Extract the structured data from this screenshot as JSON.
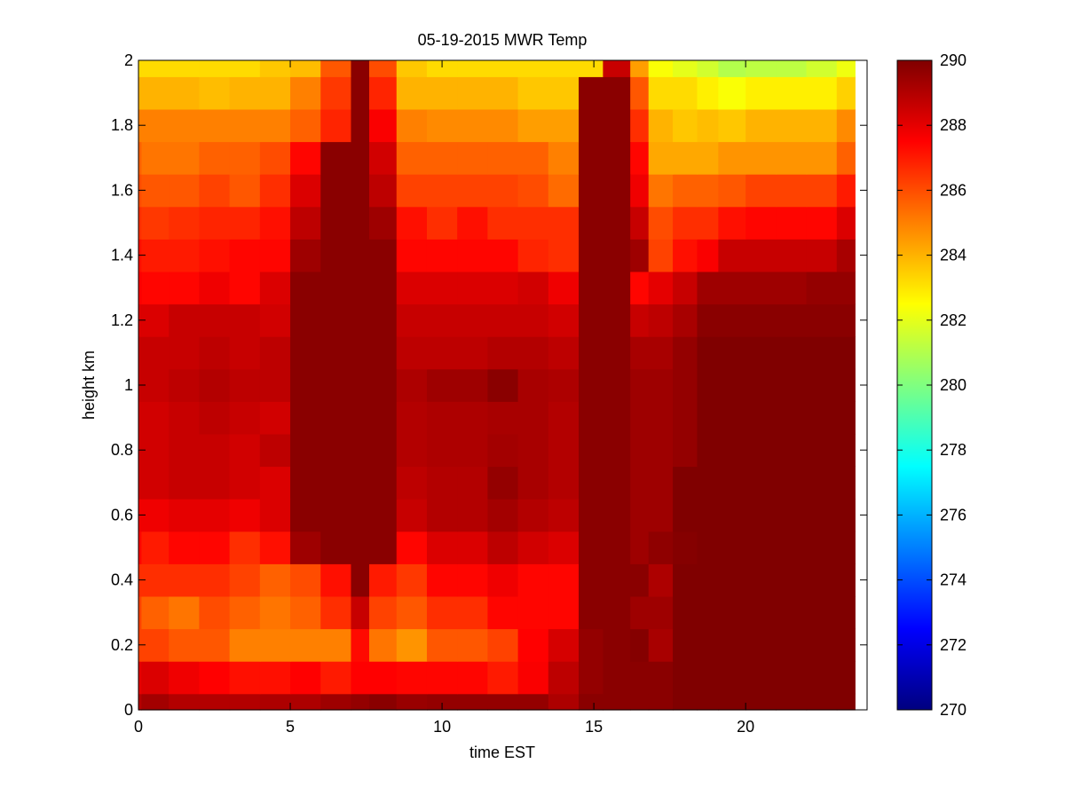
{
  "chart_data": {
    "type": "heatmap",
    "title": "05-19-2015 MWR Temp",
    "xlabel": "time EST",
    "ylabel": "height km",
    "xlim": [
      0,
      24
    ],
    "ylim": [
      0,
      2
    ],
    "x_ticks": [
      0,
      5,
      10,
      15,
      20
    ],
    "y_ticks": [
      0,
      0.2,
      0.4,
      0.6,
      0.8,
      1,
      1.2,
      1.4,
      1.6,
      1.8,
      2
    ],
    "x_edges": [
      0,
      0.1,
      1,
      2,
      3,
      4,
      5,
      6,
      7,
      7.6,
      8.5,
      9.5,
      10.5,
      11.5,
      12.5,
      13.5,
      14.5,
      15.3,
      16.2,
      16.8,
      17.6,
      18.4,
      19.1,
      20.0,
      21.0,
      22.0,
      23.0,
      23.6
    ],
    "y_edges": [
      0,
      0.05,
      0.15,
      0.25,
      0.35,
      0.45,
      0.55,
      0.65,
      0.75,
      0.85,
      0.95,
      1.05,
      1.15,
      1.25,
      1.35,
      1.45,
      1.55,
      1.65,
      1.75,
      1.85,
      1.95,
      2.0
    ],
    "z_unit": "K",
    "z_values": [
      [
        289.0,
        289.3,
        289.0,
        289.0,
        289.0,
        289.1,
        289.1,
        289.4,
        289.6,
        289.8,
        289.5,
        289.6,
        289.6,
        289.6,
        289.6,
        289.1,
        289.8,
        289.8,
        289.8,
        289.8,
        290.0,
        290.0,
        290.0,
        290.0,
        290.0,
        290.0,
        290.0
      ],
      [
        288.0,
        288.2,
        287.8,
        287.5,
        287.2,
        287.2,
        287.5,
        287.0,
        287.5,
        287.5,
        287.4,
        287.4,
        287.4,
        287.0,
        287.6,
        288.8,
        289.6,
        289.8,
        289.8,
        289.8,
        290.0,
        290.0,
        290.0,
        290.0,
        290.0,
        290.0,
        290.0
      ],
      [
        286.2,
        286.2,
        285.8,
        285.8,
        285.0,
        285.0,
        285.0,
        285.0,
        287.3,
        285.2,
        284.6,
        285.8,
        285.8,
        286.2,
        287.5,
        288.3,
        289.6,
        289.8,
        289.9,
        289.2,
        290.0,
        290.0,
        290.0,
        290.0,
        290.0,
        290.0,
        290.0
      ],
      [
        286.2,
        285.6,
        285.2,
        286.0,
        285.6,
        285.2,
        285.6,
        286.6,
        288.6,
        286.2,
        285.8,
        286.6,
        286.6,
        287.4,
        287.4,
        287.4,
        289.8,
        289.8,
        289.4,
        289.4,
        290.0,
        290.0,
        290.0,
        290.0,
        290.0,
        290.0,
        290.0
      ],
      [
        286.6,
        286.6,
        286.6,
        286.6,
        286.2,
        285.6,
        286.0,
        287.2,
        289.8,
        287.0,
        286.4,
        287.4,
        287.4,
        287.8,
        287.4,
        287.4,
        289.8,
        289.8,
        289.8,
        289.1,
        290.0,
        290.0,
        290.0,
        290.0,
        290.0,
        290.0,
        290.0
      ],
      [
        287.4,
        287.0,
        287.4,
        287.4,
        286.6,
        287.2,
        289.4,
        289.8,
        289.8,
        289.8,
        287.4,
        288.2,
        288.2,
        288.8,
        288.4,
        288.2,
        289.8,
        289.8,
        289.4,
        289.7,
        289.9,
        290.0,
        290.0,
        290.0,
        290.0,
        290.0,
        290.0
      ],
      [
        287.8,
        287.8,
        288.0,
        288.0,
        287.8,
        288.2,
        289.8,
        289.8,
        289.8,
        289.8,
        288.6,
        289.0,
        289.0,
        289.3,
        289.0,
        288.8,
        289.8,
        289.8,
        289.4,
        289.4,
        290.0,
        290.0,
        290.0,
        290.0,
        290.0,
        290.0,
        290.0
      ],
      [
        288.4,
        288.4,
        288.6,
        288.6,
        288.4,
        288.2,
        289.8,
        289.8,
        289.8,
        289.8,
        288.8,
        289.0,
        289.0,
        289.6,
        289.2,
        289.0,
        289.8,
        289.8,
        289.4,
        289.4,
        290.0,
        290.0,
        290.0,
        290.0,
        290.0,
        290.0,
        290.0
      ],
      [
        288.4,
        288.4,
        288.6,
        288.6,
        288.4,
        288.8,
        289.8,
        289.8,
        289.8,
        289.8,
        289.0,
        289.1,
        289.1,
        289.3,
        289.2,
        289.0,
        289.8,
        289.8,
        289.4,
        289.4,
        289.6,
        290.0,
        290.0,
        290.0,
        290.0,
        290.0,
        290.0
      ],
      [
        288.4,
        288.4,
        288.6,
        288.8,
        288.6,
        288.4,
        289.8,
        289.8,
        289.8,
        289.8,
        289.0,
        289.1,
        289.1,
        289.2,
        289.2,
        289.0,
        289.8,
        289.8,
        289.4,
        289.4,
        289.6,
        290.0,
        290.0,
        290.0,
        290.0,
        290.0,
        290.0
      ],
      [
        288.6,
        288.6,
        288.8,
        289.0,
        288.8,
        288.8,
        289.8,
        289.8,
        289.8,
        289.8,
        289.1,
        289.4,
        289.4,
        289.8,
        289.2,
        289.1,
        289.8,
        289.8,
        289.4,
        289.4,
        289.6,
        290.0,
        290.0,
        290.0,
        290.0,
        290.0,
        290.0
      ],
      [
        288.6,
        288.6,
        288.6,
        288.8,
        288.6,
        288.8,
        289.8,
        289.8,
        289.8,
        289.8,
        288.8,
        288.8,
        288.8,
        289.0,
        289.0,
        288.8,
        289.8,
        289.8,
        289.2,
        289.2,
        289.6,
        290.0,
        290.0,
        290.0,
        290.0,
        290.0,
        290.0
      ],
      [
        288.2,
        288.2,
        288.6,
        288.6,
        288.6,
        288.4,
        289.8,
        289.8,
        289.8,
        289.8,
        288.6,
        288.6,
        288.6,
        288.6,
        288.6,
        288.4,
        289.8,
        289.8,
        288.6,
        288.8,
        289.2,
        289.8,
        289.8,
        289.8,
        289.8,
        289.8,
        289.8
      ],
      [
        287.6,
        287.4,
        287.4,
        287.8,
        287.4,
        288.2,
        289.8,
        289.8,
        289.8,
        289.8,
        288.2,
        288.2,
        288.2,
        288.2,
        288.4,
        287.8,
        289.8,
        289.8,
        287.4,
        288.0,
        288.6,
        289.4,
        289.4,
        289.4,
        289.4,
        289.6,
        289.6
      ],
      [
        287.2,
        287.0,
        287.0,
        287.2,
        287.4,
        287.4,
        289.4,
        289.8,
        289.8,
        289.8,
        287.4,
        287.4,
        287.4,
        287.4,
        286.8,
        286.6,
        289.8,
        289.8,
        289.4,
        286.2,
        287.2,
        287.6,
        288.6,
        288.6,
        288.6,
        288.6,
        289.2
      ],
      [
        286.6,
        286.4,
        286.6,
        286.8,
        286.8,
        287.2,
        288.8,
        289.8,
        289.8,
        289.4,
        287.2,
        286.6,
        287.2,
        286.6,
        286.6,
        286.6,
        289.8,
        289.8,
        288.6,
        286.0,
        286.6,
        286.6,
        287.2,
        287.4,
        287.4,
        287.4,
        288.2
      ],
      [
        286.0,
        285.8,
        285.8,
        286.2,
        285.8,
        286.6,
        288.2,
        289.8,
        289.8,
        288.8,
        286.2,
        286.2,
        286.2,
        286.2,
        286.0,
        285.4,
        289.8,
        289.8,
        287.8,
        285.2,
        285.6,
        285.6,
        285.8,
        286.2,
        286.2,
        286.2,
        287.0
      ],
      [
        285.6,
        285.2,
        285.2,
        285.6,
        285.6,
        286.0,
        287.4,
        289.8,
        289.8,
        288.4,
        285.6,
        285.6,
        285.6,
        285.6,
        285.6,
        285.0,
        289.8,
        289.8,
        287.4,
        284.2,
        284.2,
        284.2,
        284.6,
        284.6,
        284.6,
        284.6,
        285.6
      ],
      [
        285.0,
        285.0,
        285.0,
        285.0,
        285.0,
        285.0,
        285.6,
        286.8,
        289.8,
        287.6,
        285.0,
        284.8,
        284.8,
        284.8,
        284.4,
        284.4,
        289.8,
        289.8,
        286.6,
        284.0,
        283.6,
        283.8,
        283.6,
        284.0,
        284.0,
        284.0,
        284.8
      ],
      [
        284.0,
        284.0,
        284.0,
        283.8,
        284.0,
        284.0,
        285.0,
        286.4,
        289.8,
        286.8,
        284.0,
        284.0,
        284.0,
        284.0,
        283.6,
        283.6,
        289.8,
        289.8,
        285.8,
        283.2,
        283.2,
        282.8,
        282.4,
        282.8,
        282.8,
        282.8,
        283.4
      ],
      [
        283.2,
        283.2,
        283.2,
        283.2,
        283.2,
        283.6,
        283.8,
        285.8,
        289.8,
        286.0,
        283.6,
        283.2,
        283.2,
        283.2,
        283.2,
        283.2,
        283.2,
        288.6,
        284.4,
        282.4,
        282.0,
        281.6,
        281.0,
        281.2,
        281.2,
        281.6,
        282.2
      ]
    ],
    "colorbar": {
      "min": 270,
      "max": 290,
      "ticks": [
        270,
        272,
        274,
        276,
        278,
        280,
        282,
        284,
        286,
        288,
        290
      ],
      "colormap": "jet"
    },
    "grid": false,
    "legend": "none"
  }
}
